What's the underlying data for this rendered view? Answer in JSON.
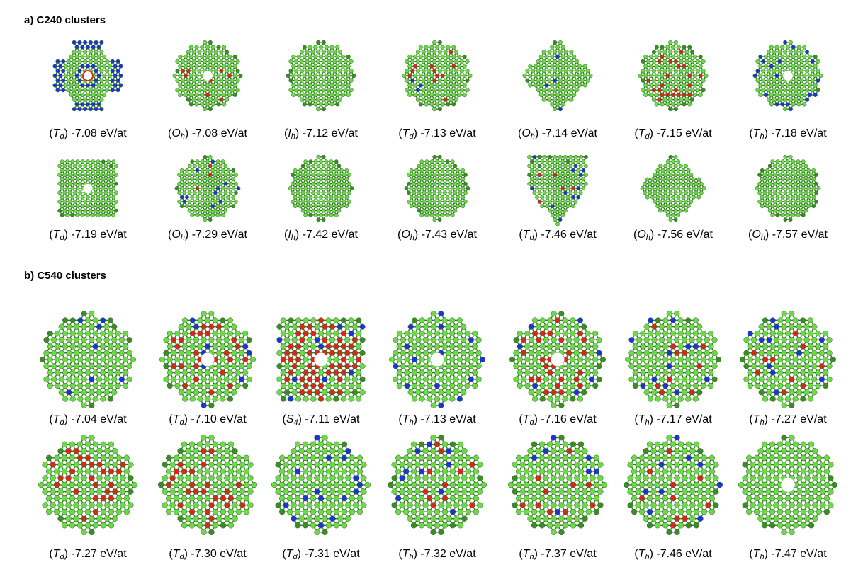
{
  "sections": [
    {
      "title": "a) C240 clusters",
      "rows": [
        [
          {
            "sym": "T",
            "sub": "d",
            "energy": "-7.08 eV/at",
            "style": "cross"
          },
          {
            "sym": "O",
            "sub": "h",
            "energy": "-7.08 eV/at",
            "style": "red-octa"
          },
          {
            "sym": "I",
            "sub": "h",
            "energy": "-7.12 eV/at",
            "style": "plain"
          },
          {
            "sym": "T",
            "sub": "d",
            "energy": "-7.13 eV/at",
            "style": "red-blue"
          },
          {
            "sym": "O",
            "sub": "h",
            "energy": "-7.14 eV/at",
            "style": "diamond"
          },
          {
            "sym": "T",
            "sub": "d",
            "energy": "-7.15 eV/at",
            "style": "red-dense"
          },
          {
            "sym": "T",
            "sub": "h",
            "energy": "-7.18 eV/at",
            "style": "ring-blue"
          }
        ],
        [
          {
            "sym": "T",
            "sub": "d",
            "energy": "-7.19 eV/at",
            "style": "cube"
          },
          {
            "sym": "O",
            "sub": "h",
            "energy": "-7.29 eV/at",
            "style": "red-blue-small"
          },
          {
            "sym": "I",
            "sub": "h",
            "energy": "-7.42 eV/at",
            "style": "plain"
          },
          {
            "sym": "O",
            "sub": "h",
            "energy": "-7.43 eV/at",
            "style": "plain"
          },
          {
            "sym": "T",
            "sub": "d",
            "energy": "-7.46 eV/at",
            "style": "tetra"
          },
          {
            "sym": "O",
            "sub": "h",
            "energy": "-7.56 eV/at",
            "style": "octa-plain"
          },
          {
            "sym": "O",
            "sub": "h",
            "energy": "-7.57 eV/at",
            "style": "plain"
          }
        ]
      ]
    },
    {
      "title": "b) C540 clusters",
      "rows": [
        [
          {
            "sym": "T",
            "sub": "d",
            "energy": "-7.04 eV/at",
            "style": "big-blue"
          },
          {
            "sym": "T",
            "sub": "d",
            "energy": "-7.10 eV/at",
            "style": "big-red"
          },
          {
            "sym": "S",
            "sub": "4",
            "energy": "-7.11 eV/at",
            "style": "red-square"
          },
          {
            "sym": "T",
            "sub": "h",
            "energy": "-7.13 eV/at",
            "style": "ring-blue"
          },
          {
            "sym": "T",
            "sub": "d",
            "energy": "-7.16 eV/at",
            "style": "big-red"
          },
          {
            "sym": "T",
            "sub": "h",
            "energy": "-7.17 eV/at",
            "style": "red-blue"
          },
          {
            "sym": "T",
            "sub": "h",
            "energy": "-7.27 eV/at",
            "style": "red-blue"
          }
        ],
        [
          {
            "sym": "T",
            "sub": "d",
            "energy": "-7.27 eV/at",
            "style": "red-dense"
          },
          {
            "sym": "T",
            "sub": "d",
            "energy": "-7.30 eV/at",
            "style": "red-dense"
          },
          {
            "sym": "T",
            "sub": "d",
            "energy": "-7.31 eV/at",
            "style": "big-blue"
          },
          {
            "sym": "T",
            "sub": "h",
            "energy": "-7.32 eV/at",
            "style": "red-blue"
          },
          {
            "sym": "T",
            "sub": "h",
            "energy": "-7.37 eV/at",
            "style": "red-blue"
          },
          {
            "sym": "T",
            "sub": "h",
            "energy": "-7.46 eV/at",
            "style": "red-blue"
          },
          {
            "sym": "T",
            "sub": "h",
            "energy": "-7.47 eV/at",
            "style": "ring-plain"
          }
        ]
      ]
    }
  ],
  "colors": {
    "carbon": "#6cd84a",
    "carbon_dark": "#3d8a2a",
    "bond": "#2f7d1f",
    "red": "#d6281e",
    "blue": "#1f34d6"
  }
}
